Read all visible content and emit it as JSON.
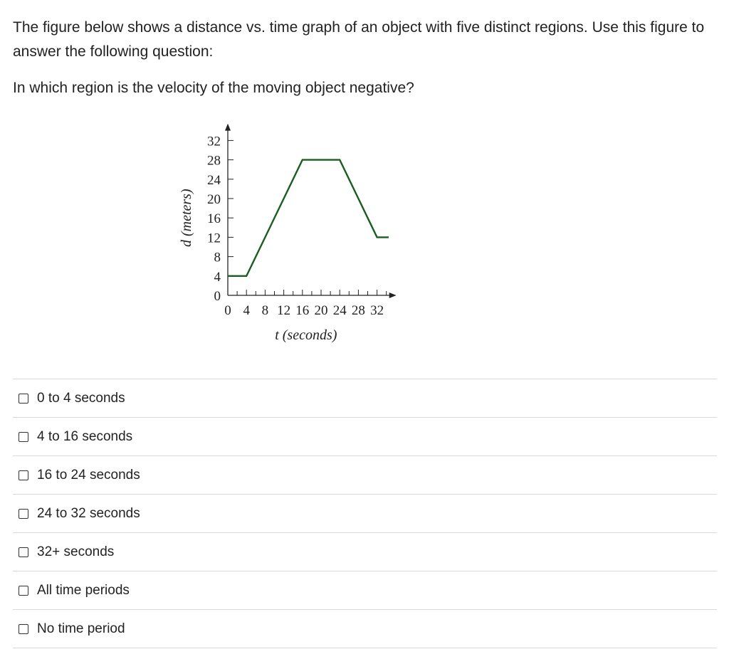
{
  "question": {
    "prompt": "The figure below shows a distance vs. time graph of an object with five distinct regions. Use this figure to answer the following question:",
    "text": "In which region is the velocity of the moving object negative?"
  },
  "chart_data": {
    "type": "line",
    "xlabel": "t (seconds)",
    "ylabel": "d (meters)",
    "xlim": [
      0,
      34
    ],
    "ylim": [
      0,
      33
    ],
    "x_ticks": [
      0,
      4,
      8,
      12,
      16,
      20,
      24,
      28,
      32
    ],
    "y_ticks": [
      0,
      4,
      8,
      12,
      16,
      20,
      24,
      28,
      32
    ],
    "grid": false,
    "series": [
      {
        "color": "#1a5e1f",
        "x": [
          0,
          4,
          16,
          24,
          32,
          34.5
        ],
        "y": [
          4,
          4,
          28,
          28,
          12,
          12
        ]
      }
    ]
  },
  "options": [
    {
      "label": "0 to 4 seconds"
    },
    {
      "label": "4 to 16 seconds"
    },
    {
      "label": "16 to 24 seconds"
    },
    {
      "label": "24 to 32 seconds"
    },
    {
      "label": "32+ seconds"
    },
    {
      "label": "All time periods"
    },
    {
      "label": "No time period"
    }
  ]
}
